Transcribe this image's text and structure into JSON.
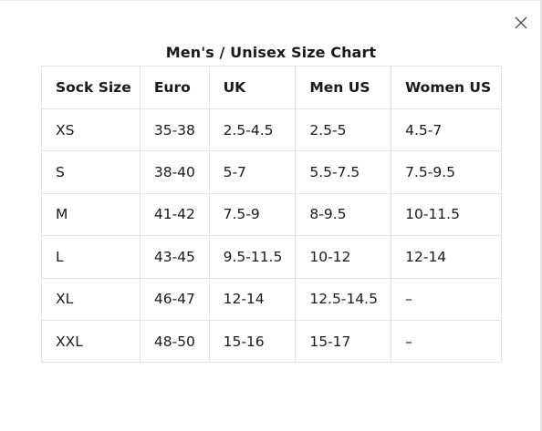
{
  "modal": {
    "title": "Men's / Unisex Size Chart",
    "close_icon": "close-icon"
  },
  "table": {
    "headers": [
      "Sock Size",
      "Euro",
      "UK",
      "Men US",
      "Women US"
    ],
    "rows": [
      [
        "XS",
        "35-38",
        "2.5-4.5",
        "2.5-5",
        "4.5-7"
      ],
      [
        "S",
        "38-40",
        "5-7",
        "5.5-7.5",
        "7.5-9.5"
      ],
      [
        "M",
        "41-42",
        "7.5-9",
        "8-9.5",
        "10-11.5"
      ],
      [
        "L",
        "43-45",
        "9.5-11.5",
        "10-12",
        "12-14"
      ],
      [
        "XL",
        "46-47",
        "12-14",
        "12.5-14.5",
        "–"
      ],
      [
        "XXL",
        "48-50",
        "15-16",
        "15-17",
        "–"
      ]
    ]
  }
}
